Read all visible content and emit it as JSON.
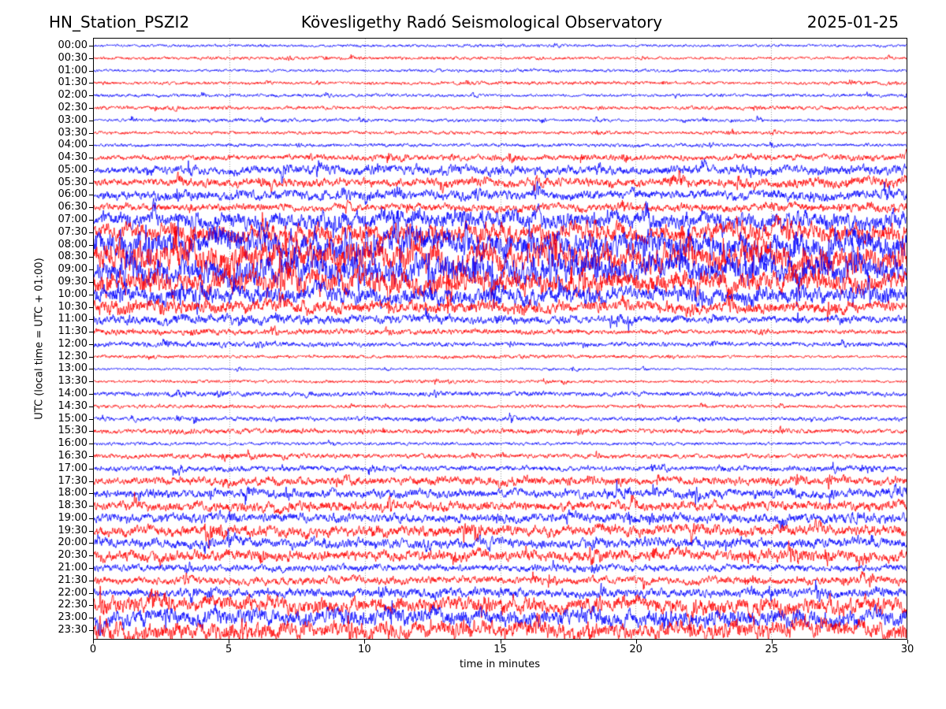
{
  "header": {
    "station": "HN_Station_PSZI2",
    "observatory": "Kövesligethy Radó Seismological Observatory",
    "date": "2025-01-25"
  },
  "chart_data": {
    "type": "line",
    "subtype": "helicorder-dayplot",
    "title": "HN_Station_PSZI2 — Kövesligethy Radó Seismological Observatory — 2025-01-25",
    "xlabel": "time in minutes",
    "ylabel": "UTC (local time = UTC + 01:00)",
    "xlim": [
      0,
      30
    ],
    "x_ticks": [
      0,
      5,
      10,
      15,
      20,
      25,
      30
    ],
    "x_tick_labels": [
      "0",
      "5",
      "10",
      "15",
      "20",
      "25",
      "30"
    ],
    "grid": "vertical-dotted",
    "grid_minutes": [
      5,
      10,
      15,
      20,
      25
    ],
    "minutes_per_row": 30,
    "colors": {
      "trace_even": "#0000ff",
      "trace_odd": "#ff0000",
      "grid": "#999999",
      "axes": "#000000",
      "background": "#ffffff"
    },
    "rows": [
      {
        "label": "00:00",
        "color": "#0000ff",
        "amp_env": [
          2.5,
          2.5,
          2.5,
          3,
          2.5,
          2.5,
          2.5
        ],
        "spikiness": 0.15
      },
      {
        "label": "00:30",
        "color": "#ff0000",
        "amp_env": [
          2.5,
          3,
          3,
          3,
          2.5,
          2.5,
          2.5
        ],
        "spikiness": 0.15
      },
      {
        "label": "01:00",
        "color": "#0000ff",
        "amp_env": [
          2.5,
          2.5,
          2.5,
          3,
          3,
          2.5,
          2.5
        ],
        "spikiness": 0.15
      },
      {
        "label": "01:30",
        "color": "#ff0000",
        "amp_env": [
          2.5,
          3,
          2.5,
          3.5,
          3,
          2.5,
          4
        ],
        "spikiness": 0.2
      },
      {
        "label": "02:00",
        "color": "#0000ff",
        "amp_env": [
          3,
          3,
          3,
          2.5,
          2.5,
          3,
          3
        ],
        "spikiness": 0.2
      },
      {
        "label": "02:30",
        "color": "#ff0000",
        "amp_env": [
          3.5,
          3.5,
          3,
          3,
          3,
          3.5,
          3.5
        ],
        "spikiness": 0.2
      },
      {
        "label": "03:00",
        "color": "#0000ff",
        "amp_env": [
          2.5,
          3.5,
          3,
          3,
          2.5,
          2.5,
          2.5
        ],
        "spikiness": 0.15
      },
      {
        "label": "03:30",
        "color": "#ff0000",
        "amp_env": [
          3,
          3,
          3,
          3,
          3,
          3,
          3
        ],
        "spikiness": 0.15
      },
      {
        "label": "04:00",
        "color": "#0000ff",
        "amp_env": [
          3,
          3,
          3,
          3,
          3.5,
          3,
          3
        ],
        "spikiness": 0.2
      },
      {
        "label": "04:30",
        "color": "#ff0000",
        "amp_env": [
          4,
          4.5,
          5,
          5,
          5,
          5,
          5.5
        ],
        "spikiness": 0.3
      },
      {
        "label": "05:00",
        "color": "#0000ff",
        "amp_env": [
          6,
          7,
          8,
          8,
          7,
          8,
          8
        ],
        "spikiness": 0.4
      },
      {
        "label": "05:30",
        "color": "#ff0000",
        "amp_env": [
          6,
          7,
          7,
          8,
          7,
          8,
          9
        ],
        "spikiness": 0.4
      },
      {
        "label": "06:00",
        "color": "#0000ff",
        "amp_env": [
          7,
          8,
          8,
          8,
          7,
          8,
          9
        ],
        "spikiness": 0.4
      },
      {
        "label": "06:30",
        "color": "#ff0000",
        "amp_env": [
          6,
          6,
          6,
          7,
          7,
          7,
          8
        ],
        "spikiness": 0.35
      },
      {
        "label": "07:00",
        "color": "#0000ff",
        "amp_env": [
          10,
          13,
          14,
          15,
          13,
          13,
          14
        ],
        "spikiness": 0.5
      },
      {
        "label": "07:30",
        "color": "#ff0000",
        "amp_env": [
          12,
          15,
          16,
          15,
          14,
          14,
          15
        ],
        "spikiness": 0.5
      },
      {
        "label": "08:00",
        "color": "#0000ff",
        "amp_env": [
          18,
          21,
          21,
          20,
          20,
          20,
          20
        ],
        "spikiness": 0.55
      },
      {
        "label": "08:30",
        "color": "#ff0000",
        "amp_env": [
          20,
          23,
          23,
          22,
          21,
          21,
          21
        ],
        "spikiness": 0.55
      },
      {
        "label": "09:00",
        "color": "#0000ff",
        "amp_env": [
          20,
          22,
          22,
          21,
          20,
          20,
          20
        ],
        "spikiness": 0.55
      },
      {
        "label": "09:30",
        "color": "#ff0000",
        "amp_env": [
          18,
          20,
          19,
          18,
          17,
          16,
          16
        ],
        "spikiness": 0.5
      },
      {
        "label": "10:00",
        "color": "#0000ff",
        "amp_env": [
          14,
          14,
          13,
          13,
          12,
          12,
          12
        ],
        "spikiness": 0.5
      },
      {
        "label": "10:30",
        "color": "#ff0000",
        "amp_env": [
          12,
          11,
          10,
          10,
          9,
          9,
          9
        ],
        "spikiness": 0.45
      },
      {
        "label": "11:00",
        "color": "#0000ff",
        "amp_env": [
          8,
          8,
          7,
          7,
          6,
          6,
          6
        ],
        "spikiness": 0.4
      },
      {
        "label": "11:30",
        "color": "#ff0000",
        "amp_env": [
          6,
          5,
          5,
          5,
          4,
          4,
          4
        ],
        "spikiness": 0.35
      },
      {
        "label": "12:00",
        "color": "#0000ff",
        "amp_env": [
          5,
          5,
          4,
          4,
          4,
          4,
          4
        ],
        "spikiness": 0.35
      },
      {
        "label": "12:30",
        "color": "#ff0000",
        "amp_env": [
          3,
          3,
          3,
          3.5,
          3,
          2.5,
          2.5
        ],
        "spikiness": 0.25
      },
      {
        "label": "13:00",
        "color": "#0000ff",
        "amp_env": [
          2,
          2,
          2,
          2,
          2,
          2,
          2
        ],
        "spikiness": 0.1
      },
      {
        "label": "13:30",
        "color": "#ff0000",
        "amp_env": [
          2.5,
          3,
          3,
          3,
          2.5,
          2.5,
          2.5
        ],
        "spikiness": 0.2
      },
      {
        "label": "14:00",
        "color": "#0000ff",
        "amp_env": [
          4,
          4.5,
          4,
          4.5,
          4,
          4,
          4
        ],
        "spikiness": 0.3
      },
      {
        "label": "14:30",
        "color": "#ff0000",
        "amp_env": [
          3.5,
          3.5,
          3,
          3,
          3,
          3,
          3
        ],
        "spikiness": 0.25
      },
      {
        "label": "15:00",
        "color": "#0000ff",
        "amp_env": [
          3.5,
          4,
          4,
          4,
          3.5,
          3.5,
          4
        ],
        "spikiness": 0.25
      },
      {
        "label": "15:30",
        "color": "#ff0000",
        "amp_env": [
          4,
          5,
          4,
          4.5,
          4,
          4,
          4
        ],
        "spikiness": 0.35
      },
      {
        "label": "16:00",
        "color": "#0000ff",
        "amp_env": [
          3,
          3,
          3,
          3,
          3,
          3,
          3
        ],
        "spikiness": 0.2
      },
      {
        "label": "16:30",
        "color": "#ff0000",
        "amp_env": [
          4,
          5,
          4,
          4,
          4,
          4,
          4
        ],
        "spikiness": 0.3
      },
      {
        "label": "17:00",
        "color": "#0000ff",
        "amp_env": [
          4.5,
          5,
          5,
          4.5,
          4.5,
          5,
          5
        ],
        "spikiness": 0.3
      },
      {
        "label": "17:30",
        "color": "#ff0000",
        "amp_env": [
          6,
          7,
          7,
          6.5,
          6.5,
          7,
          7
        ],
        "spikiness": 0.45
      },
      {
        "label": "18:00",
        "color": "#0000ff",
        "amp_env": [
          7,
          7.5,
          7,
          7,
          7,
          7,
          7.5
        ],
        "spikiness": 0.45
      },
      {
        "label": "18:30",
        "color": "#ff0000",
        "amp_env": [
          7.5,
          8,
          8,
          7.5,
          7.5,
          8,
          8
        ],
        "spikiness": 0.5
      },
      {
        "label": "19:00",
        "color": "#0000ff",
        "amp_env": [
          7.5,
          8,
          7.5,
          7.5,
          7.5,
          8,
          8
        ],
        "spikiness": 0.5
      },
      {
        "label": "19:30",
        "color": "#ff0000",
        "amp_env": [
          8.5,
          9,
          9,
          8.5,
          9,
          9,
          9
        ],
        "spikiness": 0.55
      },
      {
        "label": "20:00",
        "color": "#0000ff",
        "amp_env": [
          8,
          8,
          8,
          8,
          8,
          8,
          8
        ],
        "spikiness": 0.5
      },
      {
        "label": "20:30",
        "color": "#ff0000",
        "amp_env": [
          9,
          9,
          8.5,
          8.5,
          9,
          9,
          9
        ],
        "spikiness": 0.5
      },
      {
        "label": "21:00",
        "color": "#0000ff",
        "amp_env": [
          6,
          6,
          6,
          6,
          6,
          6,
          6
        ],
        "spikiness": 0.4
      },
      {
        "label": "21:30",
        "color": "#ff0000",
        "amp_env": [
          6,
          6.5,
          7,
          6.5,
          6,
          6.5,
          7
        ],
        "spikiness": 0.4
      },
      {
        "label": "22:00",
        "color": "#0000ff",
        "amp_env": [
          7,
          7,
          7.5,
          8,
          7,
          7.5,
          8
        ],
        "spikiness": 0.45
      },
      {
        "label": "22:30",
        "color": "#ff0000",
        "amp_env": [
          13,
          13,
          12,
          12,
          12,
          13,
          13
        ],
        "spikiness": 0.55
      },
      {
        "label": "23:00",
        "color": "#0000ff",
        "amp_env": [
          13,
          13,
          13,
          12,
          13,
          13,
          13
        ],
        "spikiness": 0.55
      },
      {
        "label": "23:30",
        "color": "#ff0000",
        "amp_env": [
          14,
          14,
          13,
          13,
          13,
          14,
          14
        ],
        "spikiness": 0.6
      }
    ]
  }
}
